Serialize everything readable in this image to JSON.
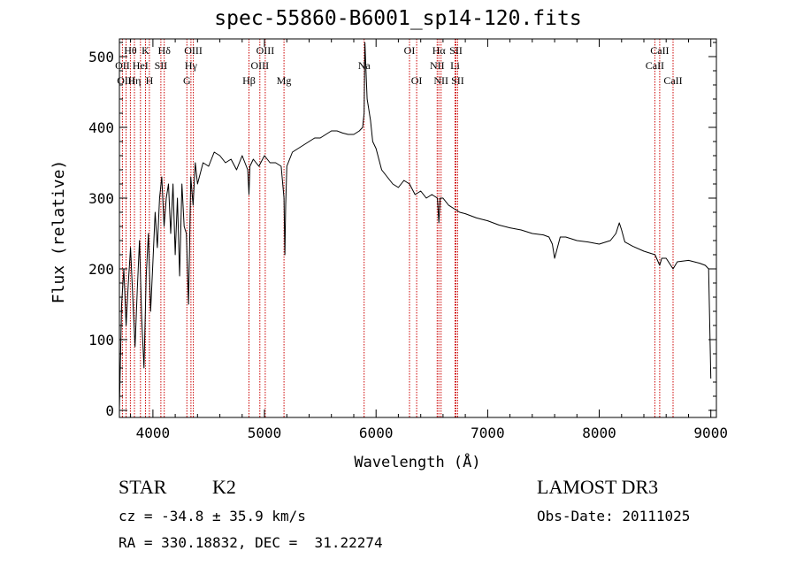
{
  "chart_data": {
    "type": "line",
    "title": "spec-55860-B6001_sp14-120.fits",
    "xlabel": "Wavelength (Å)",
    "ylabel": "Flux (relative)",
    "xlim": [
      3700,
      9050
    ],
    "ylim": [
      -10,
      525
    ],
    "xticks": [
      4000,
      5000,
      6000,
      7000,
      8000,
      9000
    ],
    "yticks": [
      0,
      100,
      200,
      300,
      400,
      500
    ],
    "grid": false,
    "series": [
      {
        "values_note": "",
        "x": [
          3700,
          3720,
          3740,
          3760,
          3780,
          3800,
          3820,
          3840,
          3860,
          3880,
          3900,
          3920,
          3940,
          3960,
          3980,
          4000,
          4020,
          4040,
          4060,
          4080,
          4100,
          4120,
          4140,
          4160,
          4180,
          4200,
          4220,
          4240,
          4260,
          4280,
          4300,
          4320,
          4340,
          4360,
          4380,
          4400,
          4450,
          4500,
          4550,
          4600,
          4650,
          4700,
          4750,
          4800,
          4850,
          4861,
          4870,
          4900,
          4950,
          5000,
          5050,
          5100,
          5150,
          5175,
          5183,
          5190,
          5200,
          5250,
          5300,
          5350,
          5400,
          5450,
          5500,
          5550,
          5600,
          5650,
          5700,
          5750,
          5800,
          5850,
          5880,
          5893,
          5900,
          5910,
          5920,
          5930,
          5950,
          5970,
          6000,
          6050,
          6100,
          6150,
          6200,
          6250,
          6300,
          6350,
          6400,
          6450,
          6500,
          6550,
          6563,
          6575,
          6600,
          6650,
          6700,
          6750,
          6800,
          6850,
          6900,
          6950,
          7000,
          7100,
          7200,
          7300,
          7400,
          7500,
          7550,
          7580,
          7600,
          7650,
          7700,
          7800,
          7900,
          8000,
          8100,
          8150,
          8180,
          8200,
          8230,
          8300,
          8400,
          8500,
          8542,
          8560,
          8600,
          8662,
          8700,
          8800,
          8900,
          8950,
          8980,
          9000
        ],
        "y": [
          0,
          150,
          200,
          120,
          180,
          230,
          160,
          90,
          170,
          240,
          130,
          60,
          190,
          250,
          140,
          210,
          280,
          230,
          300,
          330,
          260,
          300,
          320,
          250,
          320,
          220,
          300,
          190,
          320,
          260,
          250,
          150,
          330,
          290,
          350,
          320,
          350,
          345,
          365,
          360,
          350,
          355,
          340,
          360,
          340,
          305,
          345,
          355,
          345,
          360,
          350,
          350,
          345,
          300,
          220,
          290,
          345,
          365,
          370,
          375,
          380,
          385,
          385,
          390,
          395,
          395,
          392,
          390,
          390,
          395,
          400,
          420,
          520,
          480,
          440,
          430,
          410,
          380,
          370,
          340,
          330,
          320,
          315,
          325,
          320,
          305,
          310,
          300,
          305,
          300,
          265,
          300,
          300,
          290,
          285,
          280,
          278,
          275,
          272,
          270,
          268,
          262,
          258,
          255,
          250,
          248,
          245,
          235,
          215,
          245,
          245,
          240,
          238,
          235,
          240,
          250,
          265,
          255,
          238,
          232,
          225,
          220,
          205,
          215,
          215,
          200,
          210,
          212,
          208,
          205,
          200,
          45
        ]
      }
    ],
    "line_labels": [
      {
        "label": "Hθ",
        "wavelength": 3798,
        "row": 0
      },
      {
        "label": "OII",
        "wavelength": 3727,
        "row": 1
      },
      {
        "label": "OIII",
        "wavelength": 3760,
        "row": 2
      },
      {
        "label": "K",
        "wavelength": 3934,
        "row": 0
      },
      {
        "label": "HeI",
        "wavelength": 3889,
        "row": 1
      },
      {
        "label": "Hη",
        "wavelength": 3835,
        "row": 2
      },
      {
        "label": "H",
        "wavelength": 3969,
        "row": 2
      },
      {
        "label": "Hδ",
        "wavelength": 4102,
        "row": 0
      },
      {
        "label": "SII",
        "wavelength": 4072,
        "row": 1
      },
      {
        "label": "OIII",
        "wavelength": 4363,
        "row": 0
      },
      {
        "label": "Hγ",
        "wavelength": 4341,
        "row": 1
      },
      {
        "label": "G",
        "wavelength": 4305,
        "row": 2
      },
      {
        "label": "OIII",
        "wavelength": 5007,
        "row": 0
      },
      {
        "label": "OIII",
        "wavelength": 4959,
        "row": 1
      },
      {
        "label": "Hβ",
        "wavelength": 4861,
        "row": 2
      },
      {
        "label": "Mg",
        "wavelength": 5175,
        "row": 2
      },
      {
        "label": "Na",
        "wavelength": 5893,
        "row": 1
      },
      {
        "label": "OI",
        "wavelength": 6300,
        "row": 0
      },
      {
        "label": "OI",
        "wavelength": 6364,
        "row": 2
      },
      {
        "label": "Hα",
        "wavelength": 6563,
        "row": 0
      },
      {
        "label": "SII",
        "wavelength": 6716,
        "row": 0
      },
      {
        "label": "NII",
        "wavelength": 6548,
        "row": 1
      },
      {
        "label": "Li",
        "wavelength": 6708,
        "row": 1
      },
      {
        "label": "NII",
        "wavelength": 6583,
        "row": 2
      },
      {
        "label": "SII",
        "wavelength": 6731,
        "row": 2
      },
      {
        "label": "CaII",
        "wavelength": 8542,
        "row": 0
      },
      {
        "label": "CaII",
        "wavelength": 8498,
        "row": 1
      },
      {
        "label": "CaII",
        "wavelength": 8662,
        "row": 2
      }
    ],
    "marker_lines": [
      3727,
      3760,
      3798,
      3835,
      3889,
      3934,
      3969,
      4072,
      4102,
      4305,
      4341,
      4363,
      4861,
      4959,
      5007,
      5175,
      5893,
      6300,
      6364,
      6548,
      6563,
      6583,
      6708,
      6716,
      6731,
      8498,
      8542,
      8662
    ],
    "colors": {
      "spectrum": "#000000",
      "marker": "#cc0000",
      "axes": "#000000"
    }
  },
  "info": {
    "object_class": "STAR",
    "subclass": "K2",
    "survey": "LAMOST DR3",
    "cz_line": "cz = -34.8 ± 35.9 km/s",
    "obs_date_line": "Obs-Date: 20111025",
    "coords_line": "RA = 330.18832, DEC =  31.22274"
  }
}
